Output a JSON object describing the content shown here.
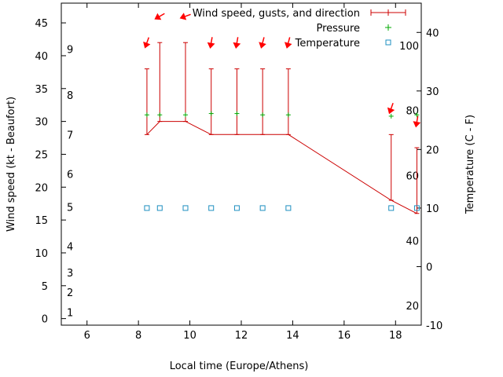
{
  "chart_data": {
    "type": "line",
    "title": "",
    "xlabel": "Local time (Europe/Athens)",
    "ylabel": "Wind speed (kt - Beaufort)",
    "y2label": "Temperature (C - F)",
    "xlim": [
      5,
      19
    ],
    "ylim": [
      -1,
      48
    ],
    "y2lim": [
      -10,
      45
    ],
    "x_ticks": [
      "6",
      "8",
      "10",
      "12",
      "14",
      "16",
      "18"
    ],
    "y_ticks": [
      "0",
      "5",
      "10",
      "15",
      "20",
      "25",
      "30",
      "35",
      "40",
      "45"
    ],
    "y2_ticks": [
      "-10",
      "0",
      "10",
      "20",
      "30",
      "40"
    ],
    "legend": {
      "position": "top-right",
      "entries": [
        "Wind speed, gusts, and direction",
        "Pressure",
        "Temperature"
      ]
    },
    "x": [
      8.33,
      8.83,
      9.83,
      10.83,
      11.83,
      12.83,
      13.83,
      17.83,
      18.83
    ],
    "series": [
      {
        "name": "Wind speed, gusts, and direction",
        "axis": "y1",
        "values": [
          28,
          30,
          30,
          28,
          28,
          28,
          28,
          18,
          16
        ],
        "gusts": [
          38,
          42,
          42,
          38,
          38,
          38,
          38,
          28,
          26
        ],
        "direction_deg": [
          20,
          60,
          70,
          10,
          10,
          15,
          15,
          20,
          10
        ]
      },
      {
        "name": "Pressure",
        "axis": "y1",
        "values": [
          31,
          31,
          31,
          31.2,
          31.2,
          31,
          31,
          30.8,
          31
        ]
      },
      {
        "name": "Temperature",
        "axis": "y2",
        "values": [
          10,
          10,
          10,
          10,
          10,
          10,
          10,
          10,
          10
        ]
      }
    ],
    "beaufort_labels": [
      "1",
      "2",
      "3",
      "4",
      "5",
      "6",
      "7",
      "8",
      "9"
    ],
    "beaufort_kt": [
      1,
      4,
      7,
      11,
      17,
      22,
      28,
      34,
      41
    ],
    "fahrenheit_labels": [
      "20",
      "40",
      "60",
      "80",
      "100"
    ],
    "fahrenheit_values": [
      20,
      40,
      60,
      80,
      100
    ],
    "colors": {
      "wind": "#cc0000",
      "pressure": "#00aa00",
      "temperature": "#1e8fc0",
      "arrow": "#ff0000",
      "axis": "#000000"
    }
  }
}
